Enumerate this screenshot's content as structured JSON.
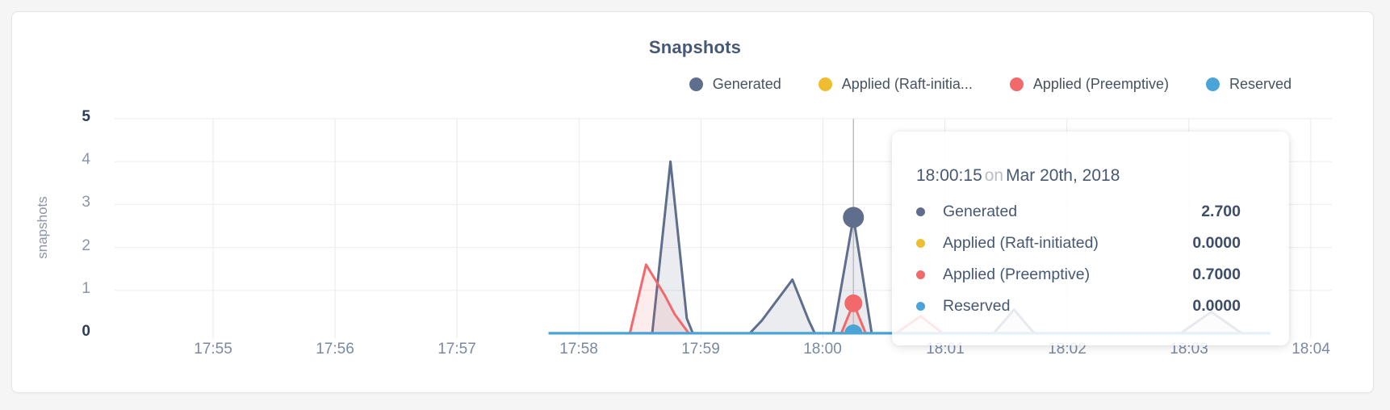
{
  "card": {
    "background": "#ffffff",
    "page_background": "#f5f5f6"
  },
  "chart_data": {
    "type": "area",
    "title": "Snapshots",
    "xlabel": "",
    "ylabel": "snapshots",
    "x_ticklabels": [
      "17:55",
      "17:56",
      "17:57",
      "17:58",
      "17:59",
      "18:00",
      "18:01",
      "18:02",
      "18:03",
      "18:04"
    ],
    "y_ticklabels": [
      "5",
      "4",
      "3",
      "2",
      "1",
      "0"
    ],
    "ylim": [
      0,
      5
    ],
    "grid": true,
    "legend_position": "top-right",
    "x_unit": "seconds after 17:55:00",
    "series": [
      {
        "name": "Generated",
        "color": "#5f6e8c",
        "fill": "rgba(95,110,140,0.13)",
        "line_width": 3,
        "points": [
          [
            165,
            0
          ],
          [
            216,
            0
          ],
          [
            225,
            4
          ],
          [
            233,
            0.35
          ],
          [
            236,
            0
          ],
          [
            264,
            0
          ],
          [
            270,
            0.3
          ],
          [
            285,
            1.25
          ],
          [
            293,
            0.3
          ],
          [
            296,
            0
          ],
          [
            305,
            0
          ],
          [
            315,
            2.7
          ],
          [
            324,
            0
          ],
          [
            384,
            0
          ],
          [
            394,
            0.55
          ],
          [
            404,
            0
          ],
          [
            476,
            0
          ],
          [
            491,
            0.5
          ],
          [
            506,
            0
          ],
          [
            520,
            0
          ]
        ]
      },
      {
        "name": "Applied (Raft-initiated)",
        "color": "#efbd2f",
        "fill": "none",
        "line_width": 2,
        "points": [
          [
            165,
            0
          ],
          [
            520,
            0
          ]
        ]
      },
      {
        "name": "Applied (Preemptive)",
        "color": "#f2696c",
        "fill": "rgba(242,105,108,0.13)",
        "line_width": 3,
        "points": [
          [
            165,
            0
          ],
          [
            205,
            0
          ],
          [
            213,
            1.6
          ],
          [
            222,
            0.9
          ],
          [
            227,
            0.45
          ],
          [
            234,
            0
          ],
          [
            309,
            0
          ],
          [
            315,
            0.7
          ],
          [
            321,
            0
          ],
          [
            336,
            0
          ],
          [
            348,
            0.4
          ],
          [
            359,
            0
          ],
          [
            520,
            0
          ]
        ]
      },
      {
        "name": "Reserved",
        "color": "#4aa4d8",
        "fill": "none",
        "line_width": 3.5,
        "points": [
          [
            165,
            0
          ],
          [
            520,
            0
          ]
        ]
      }
    ],
    "highlight": {
      "t": 315,
      "time_label": "18:00:15",
      "crosshair_color": "#b9bec7",
      "dots": [
        {
          "series": "Generated",
          "value": 2.7,
          "r": 13
        },
        {
          "series": "Applied (Raft-initiated)",
          "value": 0,
          "r": 11
        },
        {
          "series": "Applied (Preemptive)",
          "value": 0.7,
          "r": 11
        },
        {
          "series": "Reserved",
          "value": 0,
          "r": 11
        }
      ]
    }
  },
  "legend": {
    "items": [
      {
        "label": "Generated",
        "color": "#5f6e8c"
      },
      {
        "label": "Applied (Raft-initia...",
        "color": "#efbd2f"
      },
      {
        "label": "Applied (Preemptive)",
        "color": "#f2696c"
      },
      {
        "label": "Reserved",
        "color": "#4aa4d8"
      }
    ]
  },
  "axes": {
    "y_label": "snapshots",
    "y_ticks": [
      "5",
      "4",
      "3",
      "2",
      "1",
      "0"
    ],
    "x_ticks": [
      "17:55",
      "17:56",
      "17:57",
      "17:58",
      "17:59",
      "18:00",
      "18:01",
      "18:02",
      "18:03",
      "18:04"
    ]
  },
  "tooltip": {
    "time": "18:00:15",
    "preposition": "on",
    "date": "Mar 20th, 2018",
    "rows": [
      {
        "label": "Generated",
        "value": "2.700",
        "color": "#5f6e8c"
      },
      {
        "label": "Applied (Raft-initiated)",
        "value": "0.0000",
        "color": "#efbd2f"
      },
      {
        "label": "Applied (Preemptive)",
        "value": "0.7000",
        "color": "#f2696c"
      },
      {
        "label": "Reserved",
        "value": "0.0000",
        "color": "#4aa4d8"
      }
    ]
  }
}
